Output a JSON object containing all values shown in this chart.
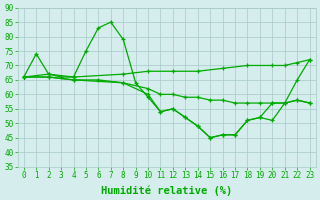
{
  "series": [
    {
      "x": [
        0,
        1,
        2,
        3,
        4,
        5,
        6,
        7,
        8,
        9,
        10,
        11,
        12,
        13,
        14,
        15,
        16,
        17,
        18,
        19,
        20,
        21,
        22,
        23
      ],
      "y": [
        66,
        74,
        67,
        66,
        66,
        75,
        83,
        85,
        79,
        64,
        59,
        54,
        55,
        52,
        49,
        45,
        46,
        46,
        51,
        52,
        57,
        57,
        65,
        72
      ]
    },
    {
      "x": [
        0,
        2,
        4,
        8,
        10,
        12,
        14,
        16,
        18,
        20,
        21,
        22,
        23
      ],
      "y": [
        66,
        67,
        66,
        67,
        68,
        68,
        68,
        69,
        70,
        70,
        70,
        71,
        72
      ]
    },
    {
      "x": [
        0,
        2,
        4,
        6,
        8,
        10,
        11,
        12,
        13,
        14,
        15,
        16,
        17,
        18,
        19,
        20,
        21,
        22,
        23
      ],
      "y": [
        66,
        66,
        65,
        65,
        64,
        62,
        60,
        60,
        59,
        59,
        58,
        58,
        57,
        57,
        57,
        57,
        57,
        58,
        57
      ]
    },
    {
      "x": [
        0,
        2,
        4,
        8,
        10,
        11,
        12,
        13,
        14,
        15,
        16,
        17,
        18,
        19,
        20,
        21,
        22,
        23
      ],
      "y": [
        66,
        66,
        65,
        64,
        60,
        54,
        55,
        52,
        49,
        45,
        46,
        46,
        51,
        52,
        51,
        57,
        58,
        57
      ]
    }
  ],
  "xlim": [
    -0.5,
    23.5
  ],
  "ylim": [
    35,
    90
  ],
  "yticks": [
    35,
    40,
    45,
    50,
    55,
    60,
    65,
    70,
    75,
    80,
    85,
    90
  ],
  "xticks": [
    0,
    1,
    2,
    3,
    4,
    5,
    6,
    7,
    8,
    9,
    10,
    11,
    12,
    13,
    14,
    15,
    16,
    17,
    18,
    19,
    20,
    21,
    22,
    23
  ],
  "xlabel": "Humidité relative (%)",
  "background_color": "#d5eeed",
  "grid_color": "#a8c8c8",
  "line_color": "#00aa00",
  "tick_fontsize": 5.5,
  "xlabel_fontsize": 7.5
}
